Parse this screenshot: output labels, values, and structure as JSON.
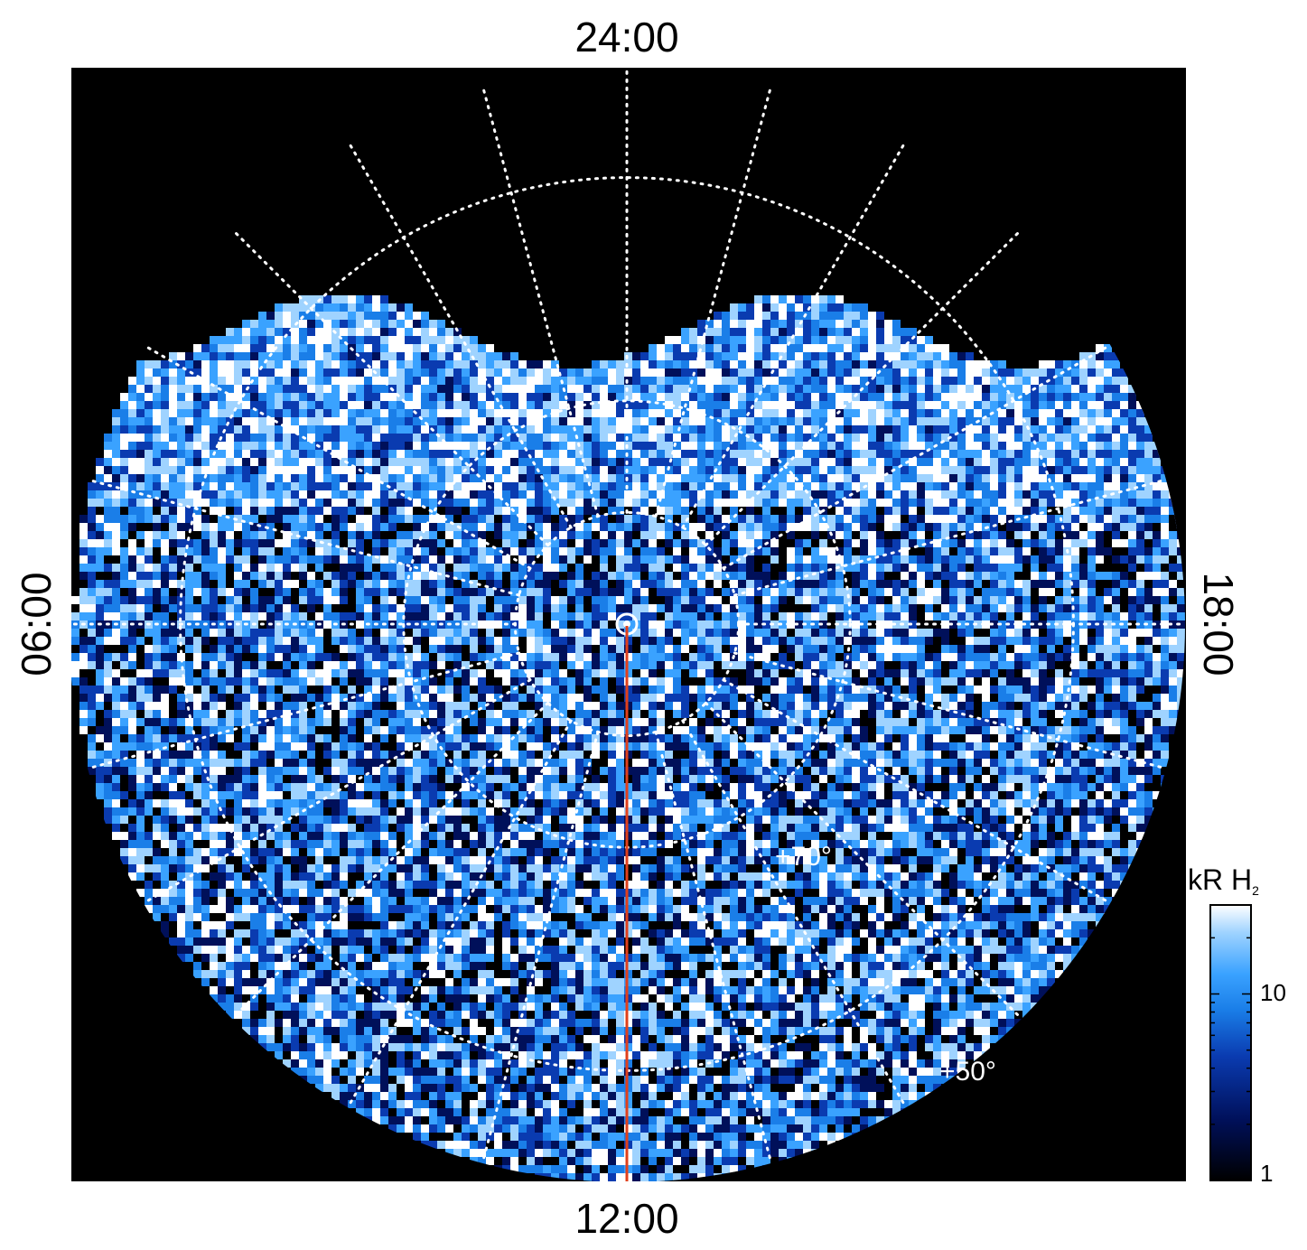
{
  "labels": {
    "top": "24:00",
    "bottom": "12:00",
    "left": "06:00",
    "right": "18:00",
    "lat70": "+70°",
    "lat50": "+50°"
  },
  "colorbar": {
    "title_main": "kR H",
    "title_sub": "2",
    "tick_high": "10",
    "tick_low": "1",
    "scale": "log",
    "range": [
      1,
      30
    ],
    "colors": [
      "#000000",
      "#00105a",
      "#0a3bb0",
      "#1a7ee8",
      "#3aa2ff",
      "#9fd3ff",
      "#ffffff"
    ]
  },
  "projection": {
    "latitude_circles_deg": [
      50,
      70,
      80
    ],
    "meridian_step_hours": 1,
    "min_latitude_deg": 40
  },
  "marker": {
    "color": "#e0401c",
    "from_local_time": "pole",
    "to_local_time": "12:00"
  },
  "colors": {
    "panel_bg": "#000000",
    "grid": "#ffffff",
    "page_bg": "#ffffff"
  }
}
